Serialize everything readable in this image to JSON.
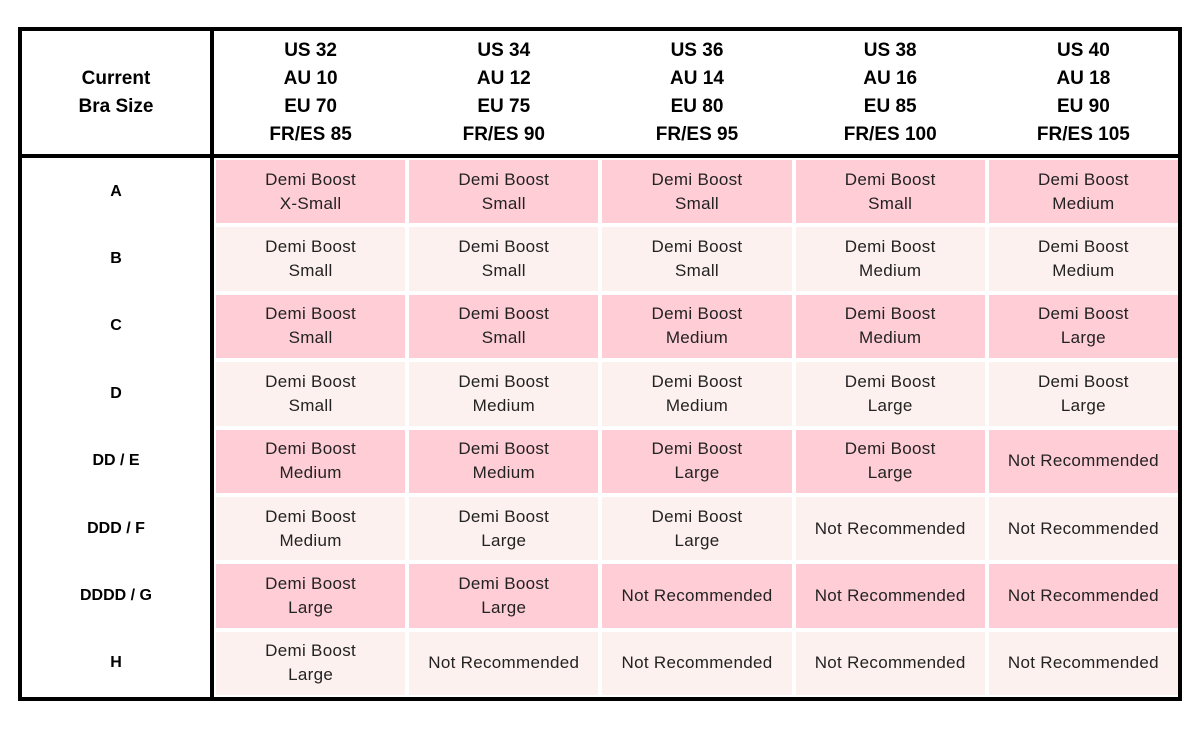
{
  "table": {
    "corner": "Current\nBra Size",
    "columns": [
      "US 32\nAU 10\nEU 70\nFR/ES 85",
      "US 34\nAU 12\nEU 75\nFR/ES 90",
      "US 36\nAU 14\nEU 80\nFR/ES 95",
      "US 38\nAU 16\nEU 85\nFR/ES 100",
      "US 40\nAU 18\nEU 90\nFR/ES 105"
    ],
    "rows": [
      {
        "label": "A",
        "cells": [
          "Demi Boost\nX-Small",
          "Demi Boost\nSmall",
          "Demi Boost\nSmall",
          "Demi Boost\nSmall",
          "Demi Boost\nMedium"
        ]
      },
      {
        "label": "B",
        "cells": [
          "Demi Boost\nSmall",
          "Demi Boost\nSmall",
          "Demi Boost\nSmall",
          "Demi Boost\nMedium",
          "Demi Boost\nMedium"
        ]
      },
      {
        "label": "C",
        "cells": [
          "Demi Boost\nSmall",
          "Demi Boost\nSmall",
          "Demi Boost\nMedium",
          "Demi Boost\nMedium",
          "Demi Boost\nLarge"
        ]
      },
      {
        "label": "D",
        "cells": [
          "Demi Boost\nSmall",
          "Demi Boost\nMedium",
          "Demi Boost\nMedium",
          "Demi Boost\nLarge",
          "Demi Boost\nLarge"
        ]
      },
      {
        "label": "DD / E",
        "cells": [
          "Demi Boost\nMedium",
          "Demi Boost\nMedium",
          "Demi Boost\nLarge",
          "Demi Boost\nLarge",
          "Not Recommended"
        ]
      },
      {
        "label": "DDD / F",
        "cells": [
          "Demi Boost\nMedium",
          "Demi Boost\nLarge",
          "Demi Boost\nLarge",
          "Not Recommended",
          "Not Recommended"
        ]
      },
      {
        "label": "DDDD / G",
        "cells": [
          "Demi Boost\nLarge",
          "Demi Boost\nLarge",
          "Not Recommended",
          "Not Recommended",
          "Not Recommended"
        ]
      },
      {
        "label": "H",
        "cells": [
          "Demi Boost\nLarge",
          "Not Recommended",
          "Not Recommended",
          "Not Recommended",
          "Not Recommended"
        ]
      }
    ]
  }
}
